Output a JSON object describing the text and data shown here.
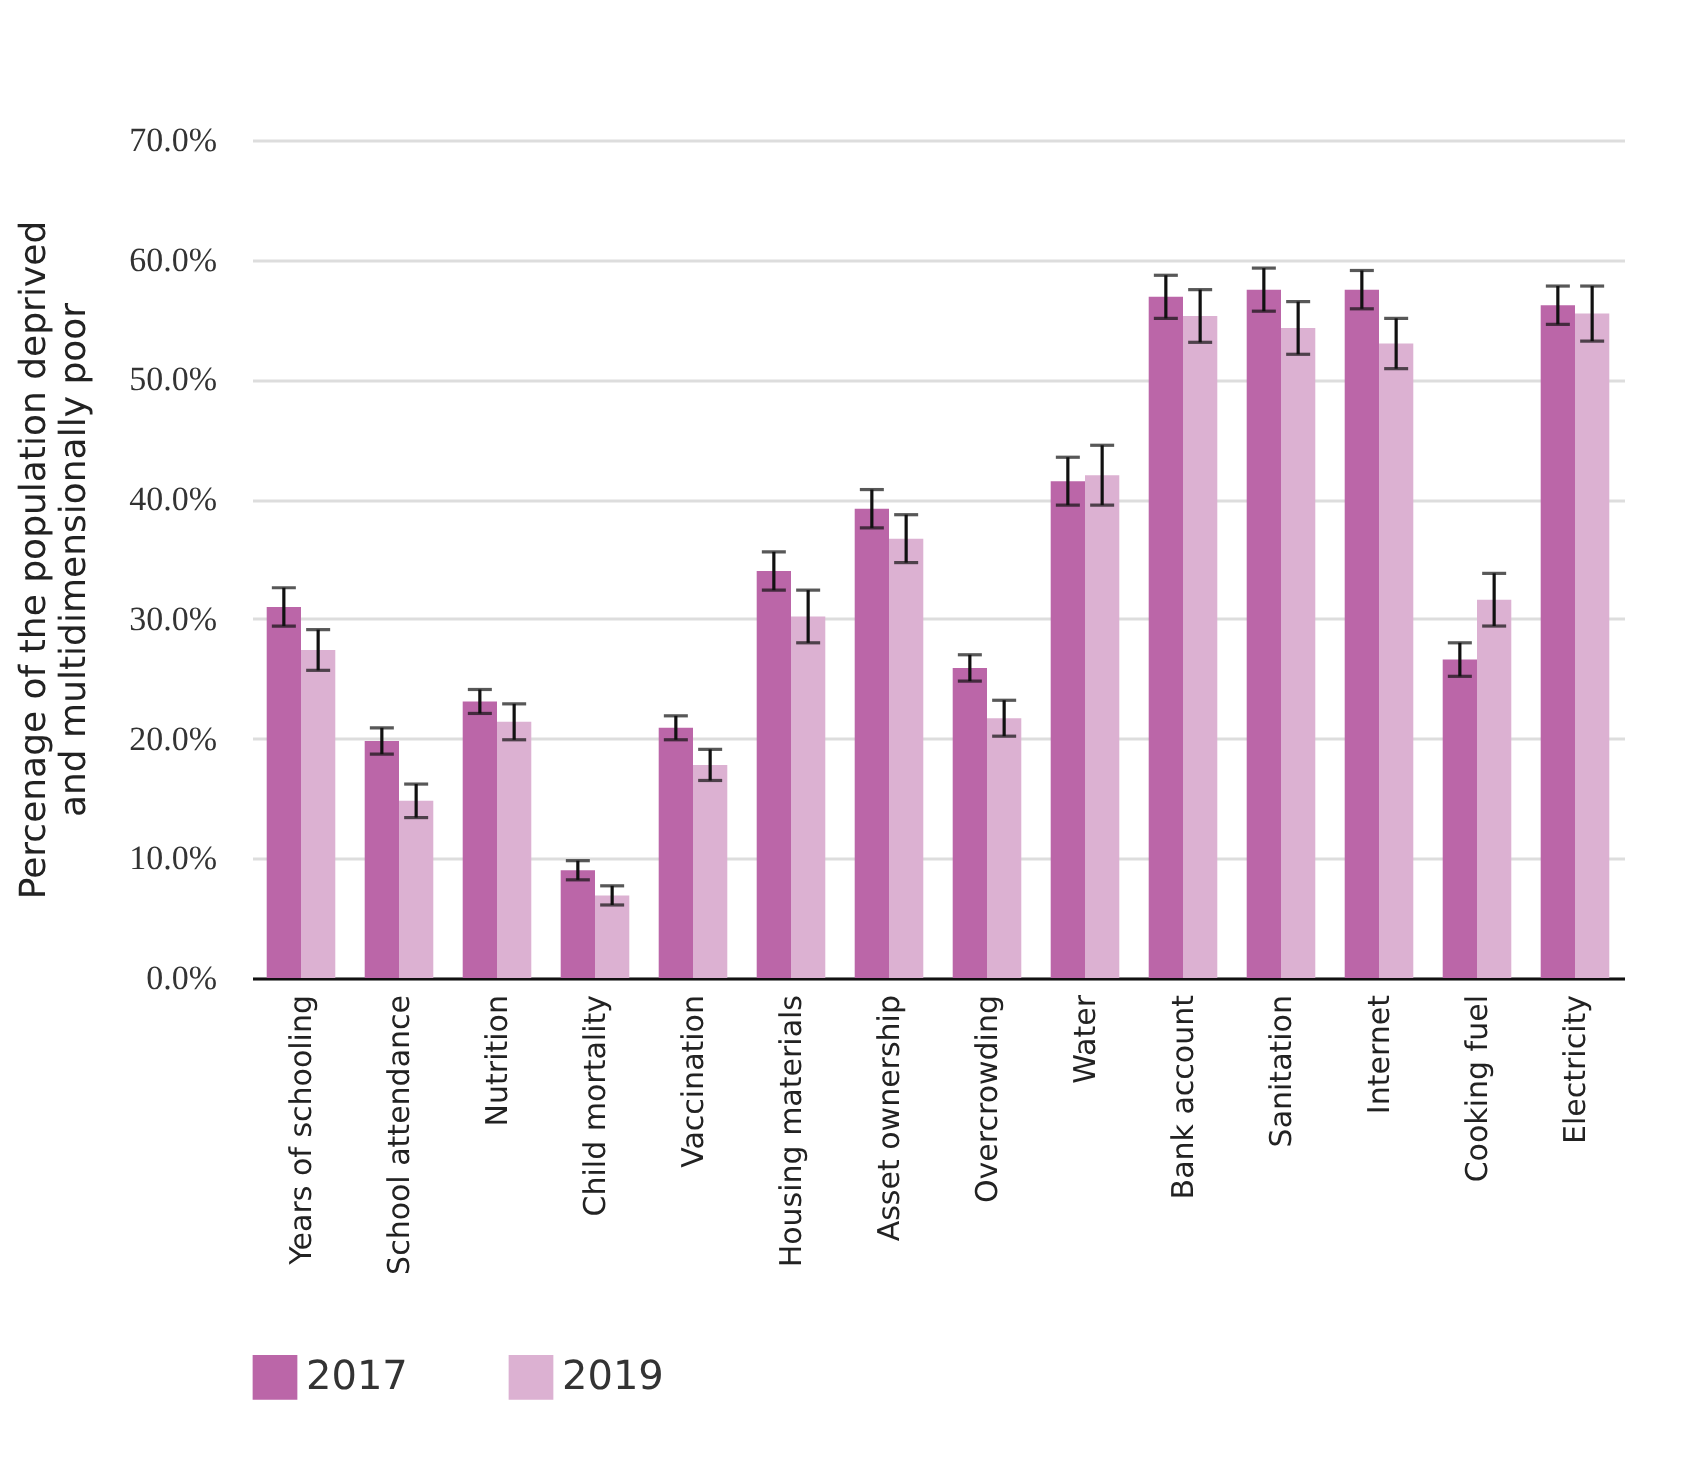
{
  "chart_data": {
    "type": "bar",
    "ylabel": "Percenage of the population deprived\nand multidimensionally poor",
    "categories": [
      "Years of schooling",
      "School attendance",
      "Nutrition",
      "Child mortality",
      "Vaccination",
      "Housing materials",
      "Asset ownership",
      "Overcrowding",
      "Water",
      "Bank account",
      "Sanitation",
      "Internet",
      "Cooking fuel",
      "Electricity"
    ],
    "series": [
      {
        "name": "2017",
        "color": "#bb66a8",
        "values": [
          31.0,
          19.8,
          23.1,
          9.0,
          20.9,
          34.0,
          39.2,
          25.9,
          41.5,
          56.9,
          57.5,
          57.5,
          26.6,
          56.2
        ],
        "errors": [
          1.6,
          1.1,
          1.0,
          0.8,
          1.0,
          1.6,
          1.6,
          1.1,
          2.0,
          1.8,
          1.8,
          1.6,
          1.4,
          1.6
        ]
      },
      {
        "name": "2019",
        "color": "#dcb1d2",
        "values": [
          27.4,
          14.8,
          21.4,
          6.9,
          17.8,
          30.2,
          36.7,
          21.7,
          42.0,
          55.3,
          54.3,
          53.0,
          31.6,
          55.5
        ],
        "errors": [
          1.7,
          1.4,
          1.5,
          0.8,
          1.3,
          2.2,
          2.0,
          1.5,
          2.5,
          2.2,
          2.2,
          2.1,
          2.2,
          2.3
        ]
      }
    ],
    "ylim": [
      0,
      70
    ],
    "yticks": [
      {
        "value": 0,
        "label": "0.0%"
      },
      {
        "value": 10,
        "label": "10.0%"
      },
      {
        "value": 20,
        "label": "20.0%"
      },
      {
        "value": 30,
        "label": "30.0%"
      },
      {
        "value": 40,
        "label": "40.0%"
      },
      {
        "value": 50,
        "label": "50.0%"
      },
      {
        "value": 60,
        "label": "60.0%"
      },
      {
        "value": 70,
        "label": "70.0%"
      }
    ],
    "grid": "y",
    "legend": "bottom"
  }
}
